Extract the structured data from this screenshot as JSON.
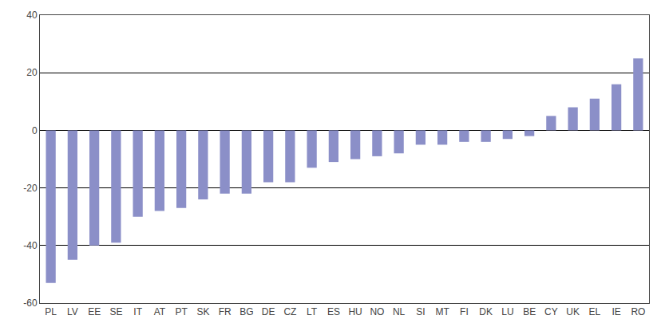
{
  "chart_data": {
    "type": "bar",
    "categories": [
      "PL",
      "LV",
      "EE",
      "SE",
      "IT",
      "AT",
      "PT",
      "SK",
      "FR",
      "BG",
      "DE",
      "CZ",
      "LT",
      "ES",
      "HU",
      "NO",
      "NL",
      "SI",
      "MT",
      "FI",
      "DK",
      "LU",
      "BE",
      "CY",
      "UK",
      "EL",
      "IE",
      "RO"
    ],
    "values": [
      -53,
      -45,
      -40,
      -39,
      -30,
      -28,
      -27,
      -24,
      -22,
      -22,
      -18,
      -18,
      -13,
      -11,
      -10,
      -9,
      -8,
      -5,
      -5,
      -4,
      -4,
      -3,
      -2,
      5,
      8,
      11,
      16,
      25
    ],
    "color": "#8B8FC8",
    "ylim": [
      -60,
      40
    ],
    "yticks": [
      -60,
      -40,
      -20,
      0,
      20,
      40
    ],
    "grid": true
  }
}
